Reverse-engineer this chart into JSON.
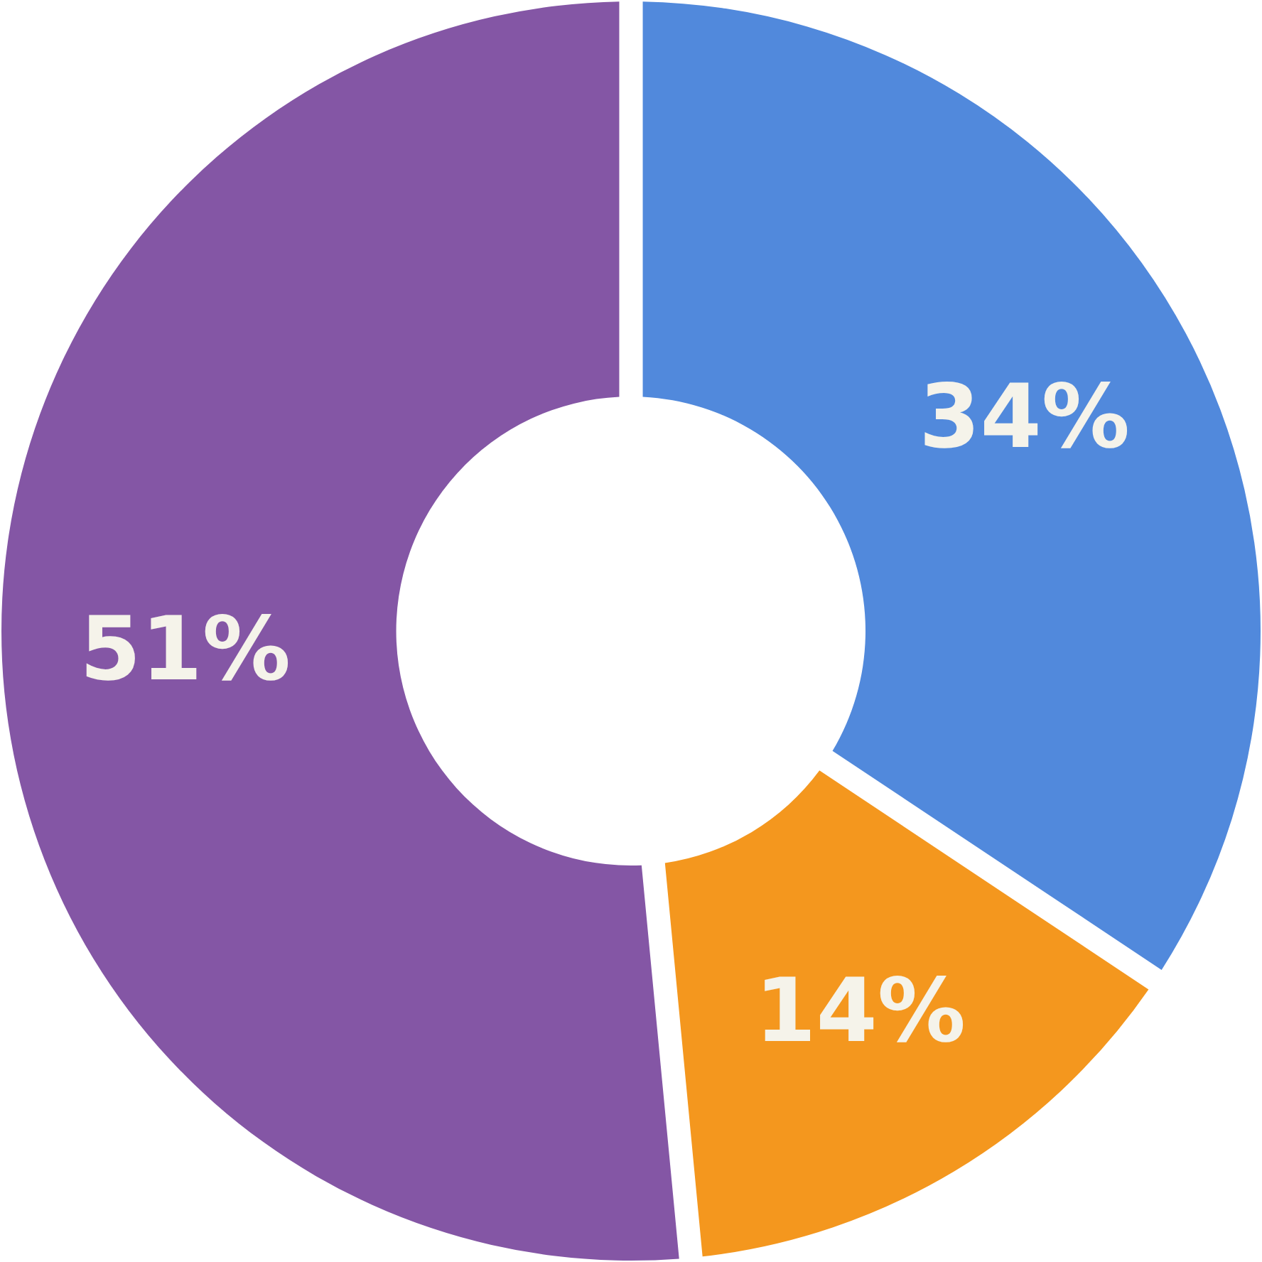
{
  "chart_data": {
    "type": "donut",
    "categories": [
      null,
      null,
      null
    ],
    "values": [
      34,
      14,
      51
    ],
    "colors": [
      "#5189dc",
      "#f4971e",
      "#8456a5"
    ],
    "value_labels": [
      "34%",
      "14%",
      "51%"
    ],
    "legend": false
  }
}
